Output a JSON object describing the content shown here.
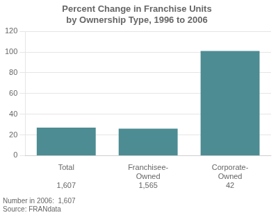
{
  "chart_data": {
    "type": "bar",
    "title": [
      "Percent Change in Franchise Units",
      "by Ownership Type, 1996 to 2006"
    ],
    "categories": [
      "Total",
      "Franchisee-\nOwned",
      "Corporate-\nOwned"
    ],
    "values": [
      27,
      26,
      101
    ],
    "sub_labels": [
      "1,607",
      "1,565",
      "42"
    ],
    "color": "#4d8c93",
    "ylim": [
      0,
      120
    ],
    "yticks": [
      0,
      20,
      40,
      60,
      80,
      100,
      120
    ],
    "grid": true,
    "annotations": [
      "Number in 2006:  1,607",
      "Source: FRANdata"
    ]
  }
}
